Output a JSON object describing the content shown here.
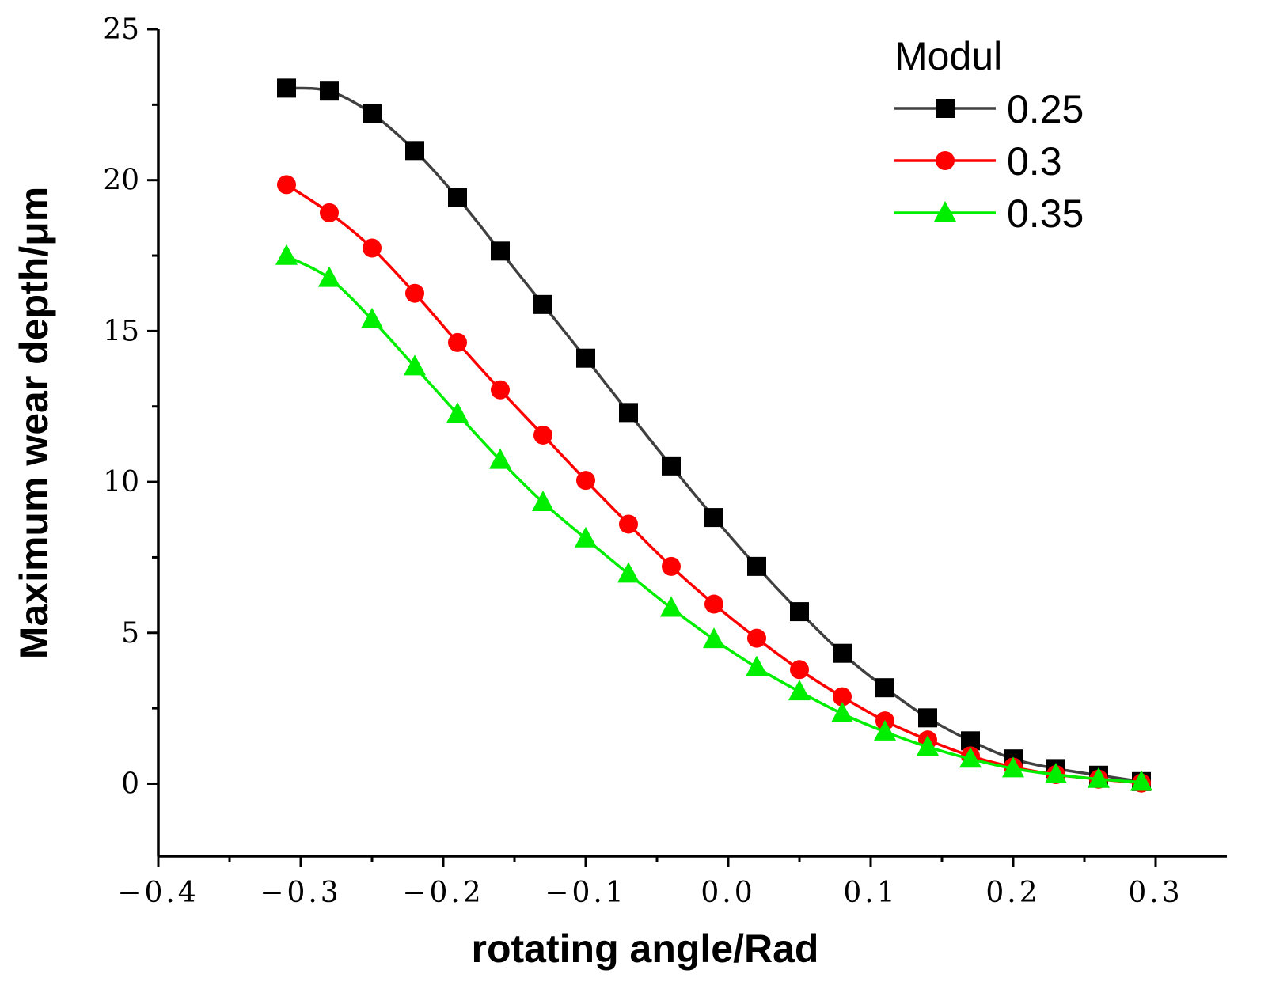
{
  "chart_data": {
    "type": "line",
    "xlabel": "rotating angle/Rad",
    "ylabel": "Maximum wear depth/μm",
    "xlim": [
      -0.4,
      0.35
    ],
    "ylim": [
      -2.4,
      25
    ],
    "x_ticks": [
      -0.4,
      -0.3,
      -0.2,
      -0.1,
      0.0,
      0.1,
      0.2,
      0.3
    ],
    "x_tick_labels": [
      "−0.4",
      "−0.3",
      "−0.2",
      "−0.1",
      "0.0",
      "0.1",
      "0.2",
      "0.3"
    ],
    "y_ticks": [
      0,
      5,
      10,
      15,
      20,
      25
    ],
    "y_tick_labels": [
      "0",
      "5",
      "10",
      "15",
      "20",
      "25"
    ],
    "grid": false,
    "legend": {
      "title": "Modul",
      "position": "top-right"
    },
    "x": [
      -0.31,
      -0.28,
      -0.25,
      -0.22,
      -0.19,
      -0.16,
      -0.13,
      -0.1,
      -0.07,
      -0.04,
      -0.01,
      0.02,
      0.05,
      0.08,
      0.11,
      0.14,
      0.17,
      0.2,
      0.23,
      0.26,
      0.29
    ],
    "series": [
      {
        "name": "0.25",
        "color": "#404040",
        "marker": "square",
        "marker_color": "#000000",
        "values": [
          23.05,
          22.95,
          22.2,
          20.98,
          19.42,
          17.65,
          15.88,
          14.1,
          12.3,
          10.53,
          8.82,
          7.2,
          5.7,
          4.32,
          3.18,
          2.18,
          1.42,
          0.82,
          0.5,
          0.28,
          0.07
        ]
      },
      {
        "name": "0.3",
        "color": "#ff0000",
        "marker": "circle",
        "marker_color": "#ff0000",
        "values": [
          19.85,
          18.92,
          17.75,
          16.25,
          14.62,
          13.05,
          11.55,
          10.05,
          8.6,
          7.2,
          5.95,
          4.82,
          3.78,
          2.88,
          2.08,
          1.45,
          0.92,
          0.55,
          0.3,
          0.15,
          0.02
        ]
      },
      {
        "name": "0.35",
        "color": "#00ee00",
        "marker": "triangle",
        "marker_color": "#00ee00",
        "values": [
          17.48,
          16.75,
          15.38,
          13.82,
          12.25,
          10.72,
          9.32,
          8.12,
          6.95,
          5.82,
          4.78,
          3.85,
          3.05,
          2.32,
          1.72,
          1.22,
          0.82,
          0.5,
          0.3,
          0.15,
          0.05
        ]
      }
    ]
  }
}
